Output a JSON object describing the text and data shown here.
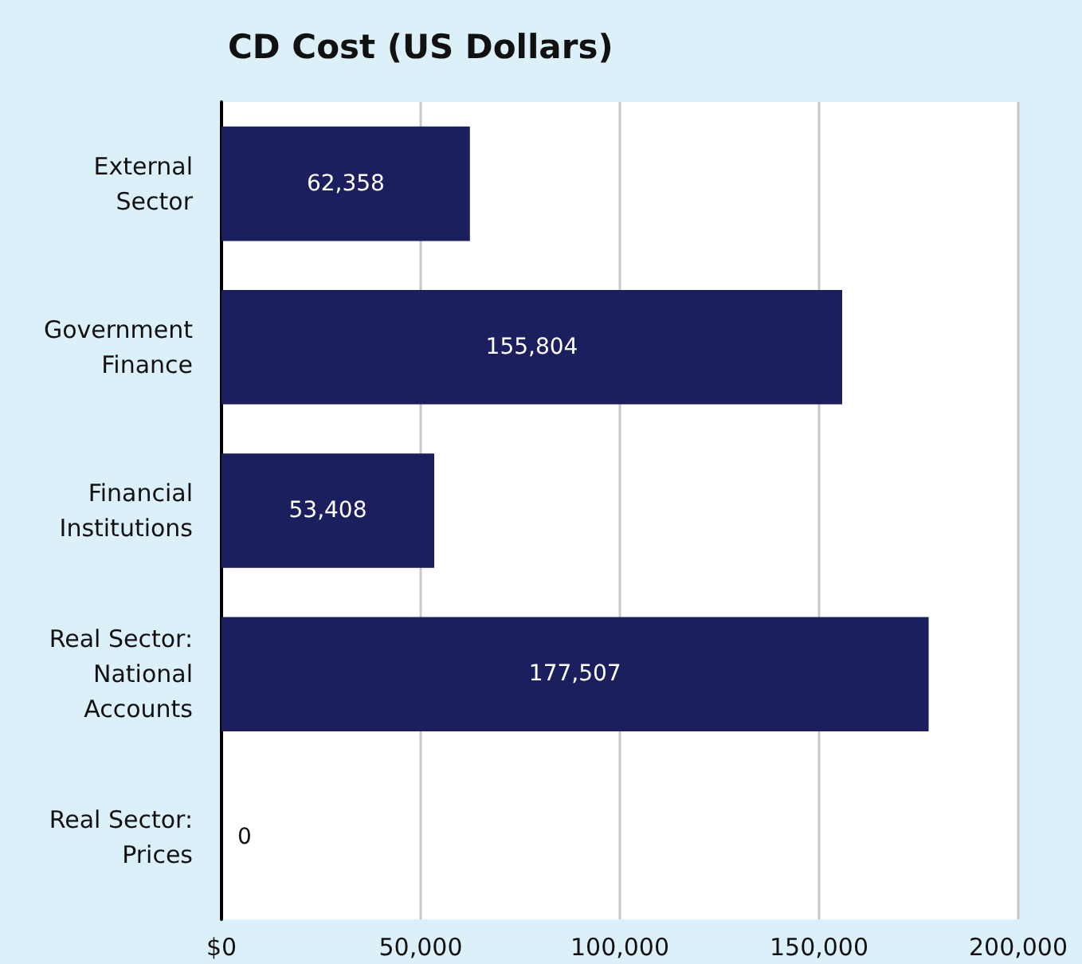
{
  "chart_data": {
    "type": "bar",
    "orientation": "horizontal",
    "title": "CD Cost (US Dollars)",
    "categories": [
      "External\nSector",
      "Government\nFinance",
      "Financial\nInstitutions",
      "Real Sector:\nNational\nAccounts",
      "Real Sector:\nPrices"
    ],
    "values": [
      62358,
      155804,
      53408,
      177507,
      0
    ],
    "value_labels": [
      "62,358",
      "155,804",
      "53,408",
      "177,507",
      "0"
    ],
    "color": "#1b1f5e",
    "xlim": [
      0,
      200000
    ],
    "xticks": [
      {
        "value": 0,
        "label": "$0"
      },
      {
        "value": 50000,
        "label": "50,000"
      },
      {
        "value": 100000,
        "label": "100,000"
      },
      {
        "value": 150000,
        "label": "150,000"
      },
      {
        "value": 200000,
        "label": "200,000"
      }
    ],
    "grid": "x"
  }
}
